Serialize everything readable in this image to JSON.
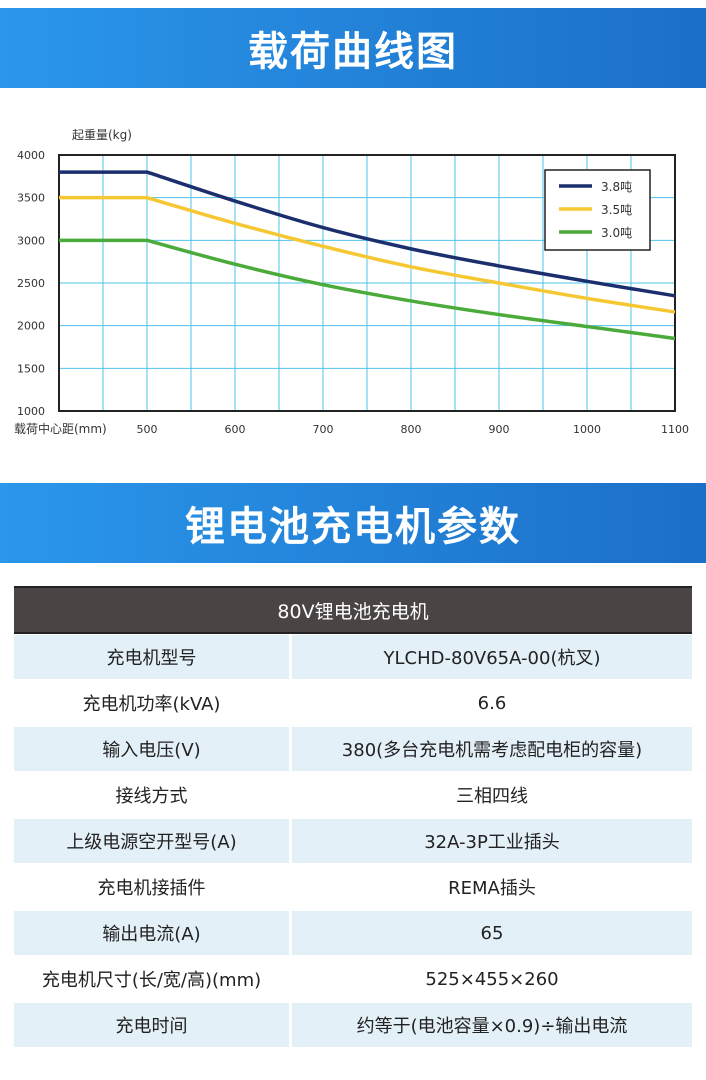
{
  "banner1": "载荷曲线图",
  "banner2": "锂电池充电机参数",
  "chart_data": {
    "type": "line",
    "ylabel": "起重量(kg)",
    "xlabel": "载荷中心距(mm)",
    "xlim": [
      400,
      1100
    ],
    "ylim": [
      1000,
      4000
    ],
    "xticks": [
      500,
      600,
      700,
      800,
      900,
      1000,
      1100
    ],
    "yticks": [
      1000,
      1500,
      2000,
      2500,
      3000,
      3500,
      4000
    ],
    "grid": true,
    "legend_position": "top-right",
    "x": [
      400,
      500,
      600,
      700,
      800,
      900,
      1000,
      1100
    ],
    "series": [
      {
        "name": "3.8吨",
        "color": "#1b2f6e",
        "values": [
          3800,
          3800,
          3460,
          3150,
          2900,
          2700,
          2520,
          2350
        ]
      },
      {
        "name": "3.5吨",
        "color": "#f5c833",
        "values": [
          3500,
          3500,
          3200,
          2930,
          2690,
          2500,
          2320,
          2160
        ]
      },
      {
        "name": "3.0吨",
        "color": "#4aab3a",
        "values": [
          3000,
          3000,
          2720,
          2480,
          2290,
          2130,
          1990,
          1850
        ]
      }
    ]
  },
  "table": {
    "title": "80V锂电池充电机",
    "rows": [
      {
        "k": "充电机型号",
        "v": "YLCHD-80V65A-00(杭叉)"
      },
      {
        "k": "充电机功率(kVA)",
        "v": "6.6"
      },
      {
        "k": "输入电压(V)",
        "v": "380(多台充电机需考虑配电柜的容量)"
      },
      {
        "k": "接线方式",
        "v": "三相四线"
      },
      {
        "k": "上级电源空开型号(A)",
        "v": "32A-3P工业插头"
      },
      {
        "k": "充电机接插件",
        "v": "REMA插头"
      },
      {
        "k": "输出电流(A)",
        "v": "65"
      },
      {
        "k": "充电机尺寸(长/宽/高)(mm)",
        "v": "525×455×260"
      },
      {
        "k": "充电时间",
        "v": "约等于(电池容量×0.9)÷输出电流"
      }
    ]
  }
}
